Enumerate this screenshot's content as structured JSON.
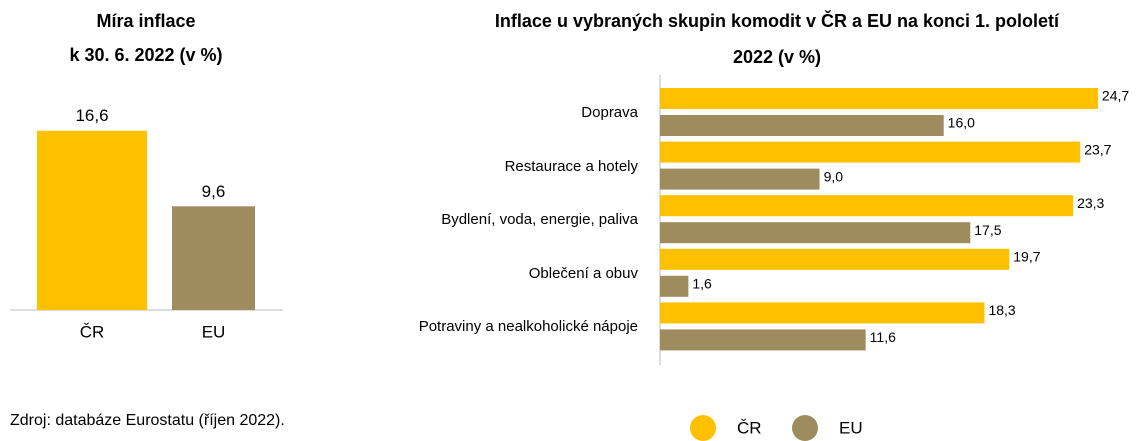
{
  "chart_data": [
    {
      "type": "bar",
      "title": [
        "Míra inflace",
        "k 30. 6. 2022 (v %)"
      ],
      "categories": [
        "ČR",
        "EU"
      ],
      "values": [
        16.6,
        9.6
      ],
      "value_labels": [
        "16,6",
        "9,6"
      ],
      "colors": [
        "#FFC000",
        "#9E8C5E"
      ]
    },
    {
      "type": "hbar",
      "title": [
        "Inflace u vybraných skupin komodit v ČR a EU na konci 1. pololetí",
        "2022 (v %)"
      ],
      "categories": [
        "Doprava",
        "Restaurace a hotely",
        "Bydlení, voda, energie, paliva",
        "Oblečení a obuv",
        "Potraviny a nealkoholické nápoje"
      ],
      "series": [
        {
          "name": "ČR",
          "color": "#FFC000",
          "values": [
            24.7,
            23.7,
            23.3,
            19.7,
            18.3
          ],
          "value_labels": [
            "24,7",
            "23,7",
            "23,3",
            "19,7",
            "18,3"
          ]
        },
        {
          "name": "EU",
          "color": "#9E8C5E",
          "values": [
            16.0,
            9.0,
            17.5,
            1.6,
            11.6
          ],
          "value_labels": [
            "16,0",
            "9,0",
            "17,5",
            "1,6",
            "11,6"
          ]
        }
      ],
      "legend": "bottom"
    }
  ],
  "source": "Zdroj: databáze Eurostatu (říjen 2022)."
}
